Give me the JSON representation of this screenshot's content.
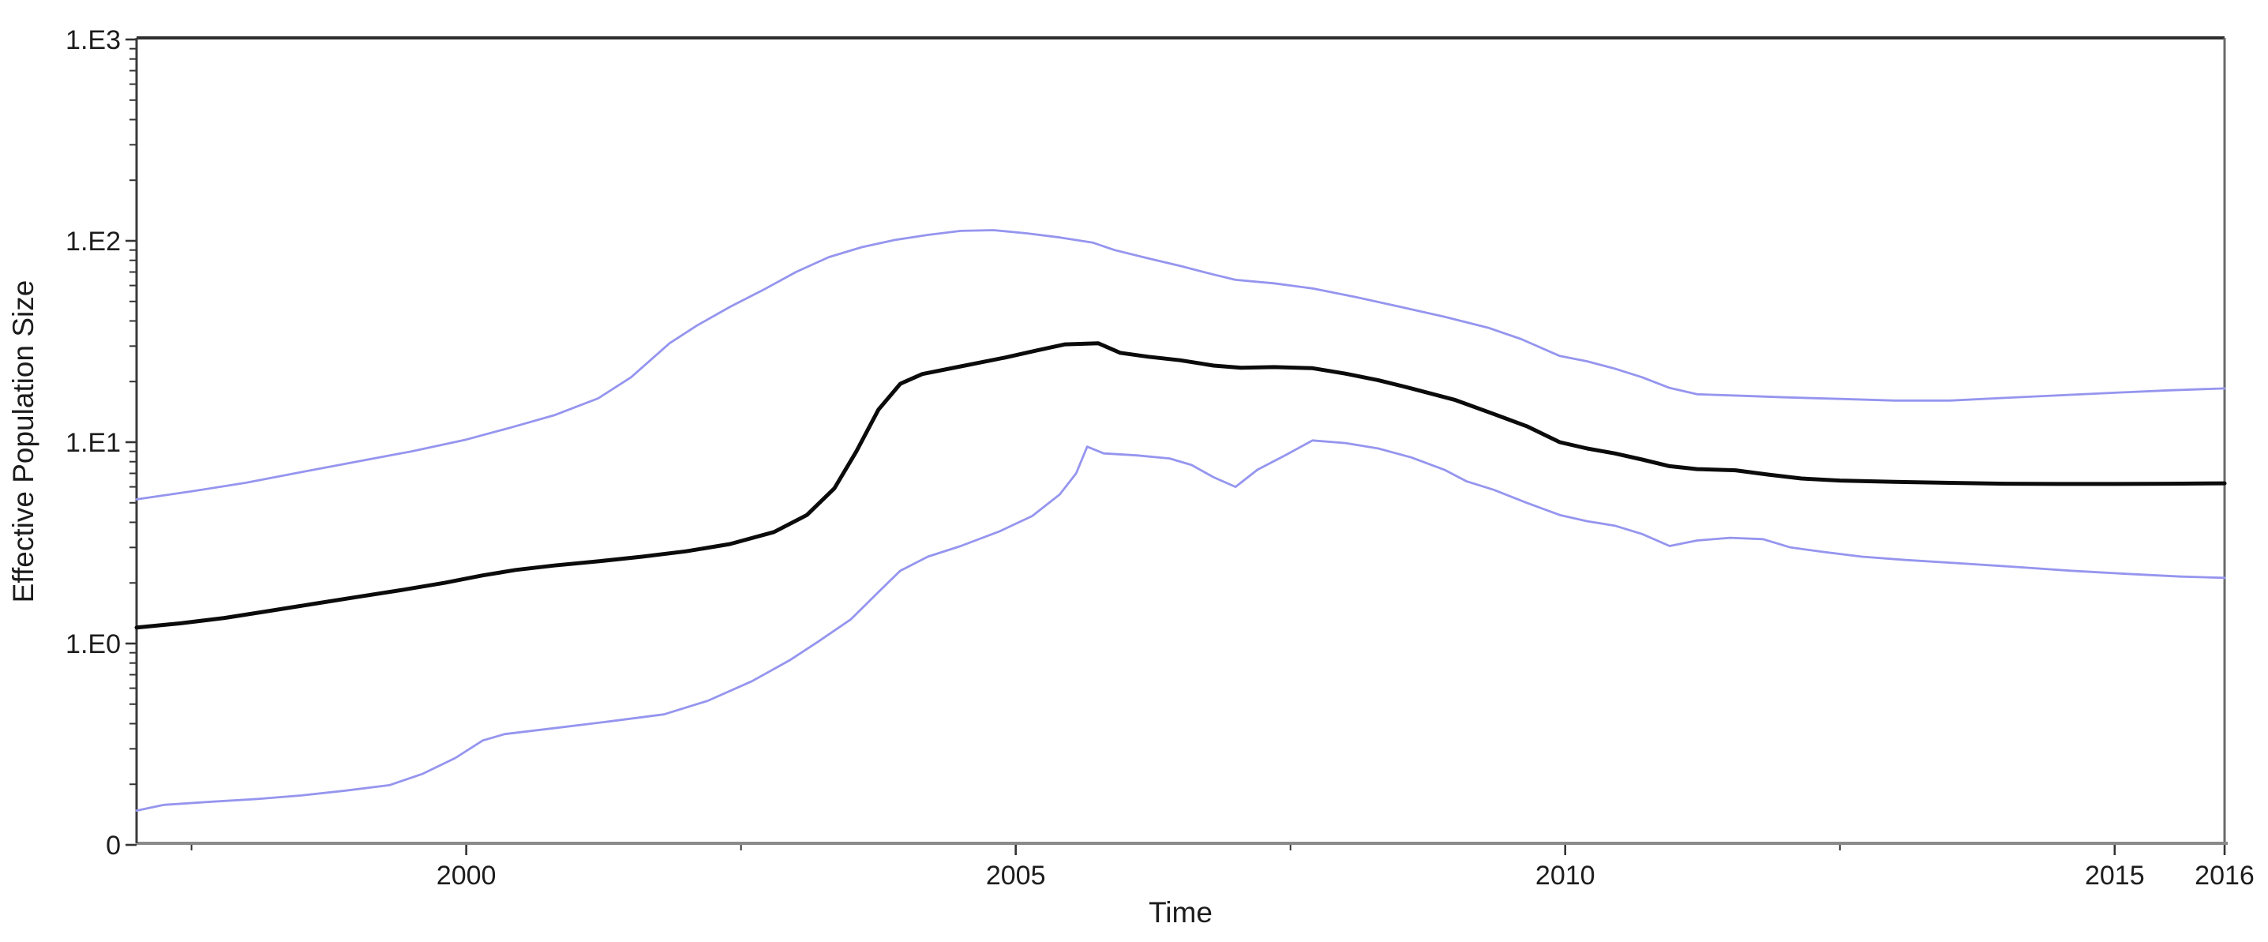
{
  "chart_data": {
    "type": "line",
    "title": "",
    "xlabel": "Time",
    "ylabel": "Effective Population Size",
    "legend": "none",
    "grid": false,
    "x_axis": {
      "scale": "linear",
      "min": 1997,
      "max": 2016,
      "major_ticks": [
        {
          "label": "2000",
          "value": 2000
        },
        {
          "label": "2005",
          "value": 2005
        },
        {
          "label": "2010",
          "value": 2010
        },
        {
          "label": "2015",
          "value": 2015
        },
        {
          "label": "2016",
          "value": 2016
        }
      ],
      "minor_tick_values": [
        1997.5,
        2002.5,
        2007.5,
        2012.5
      ]
    },
    "y_axis": {
      "scale": "log10",
      "min": 0.1,
      "max": 1000,
      "major_ticks": [
        {
          "label": "1.E3",
          "value": 1000
        },
        {
          "label": "1.E2",
          "value": 100
        },
        {
          "label": "1.E1",
          "value": 10
        },
        {
          "label": "1.E0",
          "value": 1
        },
        {
          "label": "0",
          "value": 0.1
        }
      ],
      "minor_tick_values": [
        900,
        800,
        700,
        600,
        500,
        400,
        300,
        200,
        90,
        80,
        70,
        60,
        50,
        40,
        30,
        20,
        9,
        8,
        7,
        6,
        5,
        4,
        3,
        2,
        0.9,
        0.8,
        0.7,
        0.6,
        0.5,
        0.4,
        0.3,
        0.2
      ]
    },
    "series": [
      {
        "name": "median",
        "color": "#0b0b0b",
        "stroke_width": 5,
        "points": [
          [
            1997.0,
            1.2
          ],
          [
            1997.4,
            1.26
          ],
          [
            1997.8,
            1.34
          ],
          [
            1998.2,
            1.45
          ],
          [
            1998.6,
            1.57
          ],
          [
            1999.0,
            1.7
          ],
          [
            1999.4,
            1.84
          ],
          [
            1999.8,
            2.0
          ],
          [
            2000.15,
            2.18
          ],
          [
            2000.45,
            2.32
          ],
          [
            2000.8,
            2.44
          ],
          [
            2001.2,
            2.56
          ],
          [
            2001.6,
            2.7
          ],
          [
            2002.0,
            2.87
          ],
          [
            2002.4,
            3.12
          ],
          [
            2002.8,
            3.58
          ],
          [
            2003.1,
            4.35
          ],
          [
            2003.35,
            5.9
          ],
          [
            2003.55,
            9.0
          ],
          [
            2003.75,
            14.5
          ],
          [
            2003.95,
            19.5
          ],
          [
            2004.15,
            21.8
          ],
          [
            2004.5,
            23.8
          ],
          [
            2004.9,
            26.3
          ],
          [
            2005.2,
            28.6
          ],
          [
            2005.45,
            30.6
          ],
          [
            2005.75,
            31.0
          ],
          [
            2005.95,
            27.8
          ],
          [
            2006.2,
            26.6
          ],
          [
            2006.5,
            25.5
          ],
          [
            2006.8,
            24.0
          ],
          [
            2007.05,
            23.4
          ],
          [
            2007.35,
            23.6
          ],
          [
            2007.7,
            23.3
          ],
          [
            2008.0,
            21.9
          ],
          [
            2008.3,
            20.3
          ],
          [
            2008.6,
            18.5
          ],
          [
            2009.0,
            16.2
          ],
          [
            2009.35,
            13.8
          ],
          [
            2009.65,
            12.0
          ],
          [
            2009.95,
            10.0
          ],
          [
            2010.2,
            9.3
          ],
          [
            2010.45,
            8.8
          ],
          [
            2010.7,
            8.2
          ],
          [
            2010.95,
            7.6
          ],
          [
            2011.2,
            7.35
          ],
          [
            2011.55,
            7.25
          ],
          [
            2011.85,
            6.9
          ],
          [
            2012.15,
            6.6
          ],
          [
            2012.5,
            6.45
          ],
          [
            2013.0,
            6.35
          ],
          [
            2013.5,
            6.28
          ],
          [
            2014.0,
            6.22
          ],
          [
            2014.5,
            6.2
          ],
          [
            2015.0,
            6.2
          ],
          [
            2015.5,
            6.22
          ],
          [
            2016.0,
            6.25
          ]
        ]
      },
      {
        "name": "upper-95-hpd",
        "color": "#9595ef",
        "stroke_width": 2.8,
        "points": [
          [
            1997.0,
            5.2
          ],
          [
            1997.5,
            5.7
          ],
          [
            1998.0,
            6.3
          ],
          [
            1998.5,
            7.1
          ],
          [
            1999.0,
            8.0
          ],
          [
            1999.5,
            9.0
          ],
          [
            2000.0,
            10.3
          ],
          [
            2000.4,
            11.8
          ],
          [
            2000.8,
            13.6
          ],
          [
            2001.2,
            16.5
          ],
          [
            2001.5,
            21.0
          ],
          [
            2001.85,
            31.0
          ],
          [
            2002.1,
            38.0
          ],
          [
            2002.4,
            47.0
          ],
          [
            2002.7,
            57.0
          ],
          [
            2003.0,
            70.0
          ],
          [
            2003.3,
            83.0
          ],
          [
            2003.6,
            93.0
          ],
          [
            2003.9,
            101.0
          ],
          [
            2004.2,
            107.0
          ],
          [
            2004.5,
            112.0
          ],
          [
            2004.8,
            113.0
          ],
          [
            2005.1,
            109.0
          ],
          [
            2005.4,
            104.0
          ],
          [
            2005.7,
            98.0
          ],
          [
            2005.9,
            90.0
          ],
          [
            2006.2,
            82.0
          ],
          [
            2006.5,
            75.0
          ],
          [
            2006.8,
            68.0
          ],
          [
            2007.0,
            64.0
          ],
          [
            2007.35,
            61.5
          ],
          [
            2007.7,
            58.0
          ],
          [
            2008.1,
            52.5
          ],
          [
            2008.5,
            47.0
          ],
          [
            2008.9,
            42.0
          ],
          [
            2009.3,
            37.0
          ],
          [
            2009.6,
            32.5
          ],
          [
            2009.95,
            26.8
          ],
          [
            2010.2,
            25.2
          ],
          [
            2010.45,
            23.2
          ],
          [
            2010.7,
            21.0
          ],
          [
            2010.95,
            18.6
          ],
          [
            2011.2,
            17.3
          ],
          [
            2011.6,
            17.0
          ],
          [
            2012.0,
            16.7
          ],
          [
            2012.5,
            16.4
          ],
          [
            2013.0,
            16.1
          ],
          [
            2013.5,
            16.1
          ],
          [
            2014.0,
            16.6
          ],
          [
            2014.5,
            17.1
          ],
          [
            2015.0,
            17.6
          ],
          [
            2015.5,
            18.1
          ],
          [
            2016.0,
            18.5
          ]
        ]
      },
      {
        "name": "lower-95-hpd",
        "color": "#9595ef",
        "stroke_width": 2.8,
        "points": [
          [
            1997.0,
            0.148
          ],
          [
            1997.25,
            0.158
          ],
          [
            1997.7,
            0.164
          ],
          [
            1998.1,
            0.169
          ],
          [
            1998.5,
            0.176
          ],
          [
            1998.9,
            0.186
          ],
          [
            1999.3,
            0.198
          ],
          [
            1999.6,
            0.225
          ],
          [
            1999.9,
            0.27
          ],
          [
            2000.15,
            0.33
          ],
          [
            2000.35,
            0.355
          ],
          [
            2000.8,
            0.38
          ],
          [
            2001.3,
            0.41
          ],
          [
            2001.8,
            0.445
          ],
          [
            2002.2,
            0.52
          ],
          [
            2002.6,
            0.65
          ],
          [
            2002.95,
            0.83
          ],
          [
            2003.2,
            1.02
          ],
          [
            2003.5,
            1.32
          ],
          [
            2003.75,
            1.8
          ],
          [
            2003.95,
            2.3
          ],
          [
            2004.2,
            2.7
          ],
          [
            2004.5,
            3.05
          ],
          [
            2004.85,
            3.6
          ],
          [
            2005.15,
            4.3
          ],
          [
            2005.4,
            5.5
          ],
          [
            2005.55,
            7.0
          ],
          [
            2005.65,
            9.5
          ],
          [
            2005.8,
            8.8
          ],
          [
            2006.1,
            8.6
          ],
          [
            2006.4,
            8.3
          ],
          [
            2006.6,
            7.7
          ],
          [
            2006.8,
            6.7
          ],
          [
            2007.0,
            6.0
          ],
          [
            2007.2,
            7.3
          ],
          [
            2007.45,
            8.6
          ],
          [
            2007.7,
            10.2
          ],
          [
            2008.0,
            9.9
          ],
          [
            2008.3,
            9.3
          ],
          [
            2008.6,
            8.4
          ],
          [
            2008.9,
            7.3
          ],
          [
            2009.1,
            6.4
          ],
          [
            2009.35,
            5.8
          ],
          [
            2009.65,
            5.0
          ],
          [
            2009.95,
            4.35
          ],
          [
            2010.2,
            4.05
          ],
          [
            2010.45,
            3.85
          ],
          [
            2010.7,
            3.5
          ],
          [
            2010.95,
            3.05
          ],
          [
            2011.2,
            3.25
          ],
          [
            2011.5,
            3.35
          ],
          [
            2011.8,
            3.3
          ],
          [
            2012.05,
            3.0
          ],
          [
            2012.35,
            2.85
          ],
          [
            2012.7,
            2.7
          ],
          [
            2013.1,
            2.6
          ],
          [
            2013.6,
            2.5
          ],
          [
            2014.1,
            2.4
          ],
          [
            2014.6,
            2.3
          ],
          [
            2015.1,
            2.22
          ],
          [
            2015.6,
            2.15
          ],
          [
            2016.0,
            2.12
          ]
        ]
      }
    ],
    "colors": {
      "background": "#ffffff",
      "median_line": "#0b0b0b",
      "hpd_line": "#9595ef",
      "axis_left": "#3a3a3a",
      "axis_top": "#2e2e2e",
      "axis_right": "#6a6a6a",
      "axis_bottom": "#8a8a8a",
      "tick": "#333333",
      "text": "#1c1c1c"
    }
  }
}
